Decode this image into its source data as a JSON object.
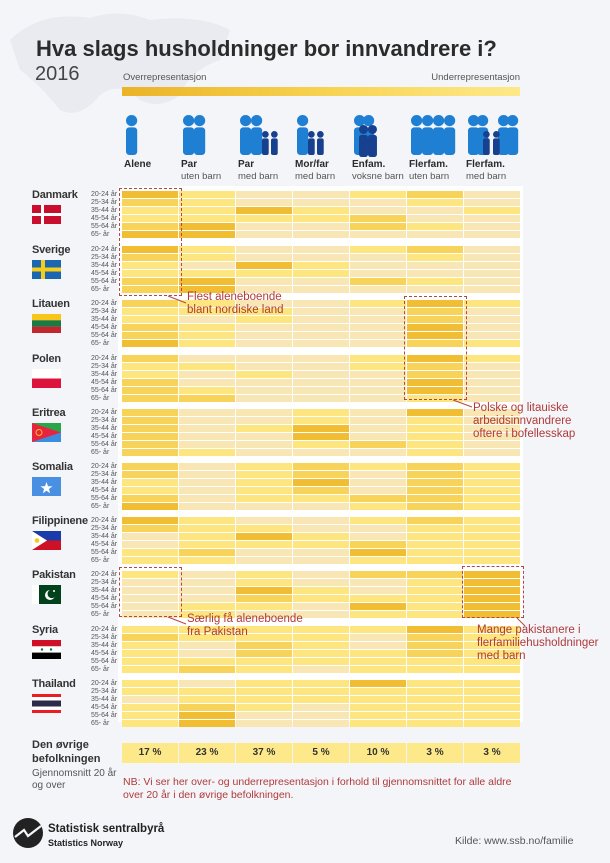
{
  "header": {
    "title": "Hva slags husholdninger bor innvandrere i?",
    "year": "2016"
  },
  "legend": {
    "over": "Overrepresentasjon",
    "under": "Underrepresentasjon"
  },
  "columns": [
    {
      "label": "Alene",
      "sub": ""
    },
    {
      "label": "Par",
      "sub": "uten barn"
    },
    {
      "label": "Par",
      "sub": "med barn"
    },
    {
      "label": "Mor/far",
      "sub": "med barn"
    },
    {
      "label": "Enfam.",
      "sub": "voksne barn"
    },
    {
      "label": "Flerfam.",
      "sub": "uten barn"
    },
    {
      "label": "Flerfam.",
      "sub": "med barn"
    }
  ],
  "colors": {
    "level0": "#f8e6b4",
    "level1": "#fde67f",
    "level2": "#f8d35a",
    "level3": "#f0bd33",
    "annotation": "#b5474b",
    "adult_icon": "#1f7fd3",
    "child_icon": "#17408f"
  },
  "chart_data": {
    "type": "heatmap",
    "scale_note": "level 0 = underrepresentation, 3 = strongest overrepresentation",
    "age_groups": [
      "20-24 år",
      "25-34 år",
      "35-44 år",
      "45-54 år",
      "55-64 år",
      "65- år"
    ],
    "countries": [
      {
        "name": "Danmark",
        "flag": "denmark",
        "levels": [
          [
            3,
            1,
            0,
            0,
            1,
            2,
            0
          ],
          [
            2,
            1,
            0,
            0,
            0,
            1,
            0
          ],
          [
            1,
            1,
            3,
            1,
            0,
            0,
            1
          ],
          [
            1,
            1,
            1,
            1,
            2,
            0,
            0
          ],
          [
            2,
            3,
            0,
            0,
            2,
            1,
            0
          ],
          [
            3,
            3,
            0,
            0,
            0,
            0,
            0
          ]
        ]
      },
      {
        "name": "Sverige",
        "flag": "sweden",
        "levels": [
          [
            3,
            1,
            0,
            0,
            1,
            2,
            0
          ],
          [
            2,
            1,
            0,
            0,
            0,
            1,
            0
          ],
          [
            1,
            0,
            3,
            1,
            0,
            0,
            0
          ],
          [
            1,
            1,
            1,
            1,
            0,
            0,
            0
          ],
          [
            2,
            3,
            0,
            0,
            2,
            1,
            0
          ],
          [
            2,
            3,
            0,
            0,
            0,
            0,
            0
          ]
        ]
      },
      {
        "name": "Litauen",
        "flag": "lithuania",
        "levels": [
          [
            2,
            1,
            0,
            0,
            1,
            3,
            1
          ],
          [
            1,
            1,
            1,
            0,
            0,
            2,
            0
          ],
          [
            1,
            0,
            1,
            0,
            0,
            2,
            0
          ],
          [
            2,
            1,
            0,
            0,
            0,
            3,
            0
          ],
          [
            2,
            1,
            0,
            0,
            0,
            3,
            0
          ],
          [
            3,
            1,
            0,
            0,
            0,
            2,
            1
          ]
        ]
      },
      {
        "name": "Polen",
        "flag": "poland",
        "levels": [
          [
            2,
            0,
            0,
            0,
            1,
            3,
            1
          ],
          [
            1,
            1,
            0,
            0,
            1,
            2,
            0
          ],
          [
            1,
            0,
            1,
            0,
            0,
            2,
            0
          ],
          [
            2,
            0,
            0,
            0,
            0,
            3,
            0
          ],
          [
            2,
            1,
            0,
            0,
            0,
            3,
            0
          ],
          [
            2,
            2,
            0,
            0,
            0,
            1,
            0
          ]
        ]
      },
      {
        "name": "Eritrea",
        "flag": "eritrea",
        "levels": [
          [
            2,
            0,
            0,
            1,
            0,
            3,
            0
          ],
          [
            2,
            0,
            0,
            1,
            0,
            1,
            0
          ],
          [
            2,
            0,
            1,
            3,
            0,
            1,
            0
          ],
          [
            2,
            0,
            0,
            3,
            0,
            1,
            0
          ],
          [
            2,
            0,
            0,
            1,
            2,
            1,
            0
          ],
          [
            2,
            1,
            0,
            0,
            0,
            1,
            0
          ]
        ]
      },
      {
        "name": "Somalia",
        "flag": "somalia",
        "levels": [
          [
            2,
            0,
            1,
            2,
            1,
            2,
            1
          ],
          [
            2,
            0,
            1,
            2,
            0,
            2,
            1
          ],
          [
            1,
            0,
            1,
            3,
            0,
            2,
            1
          ],
          [
            1,
            0,
            1,
            2,
            0,
            2,
            1
          ],
          [
            2,
            0,
            1,
            1,
            2,
            2,
            1
          ],
          [
            3,
            0,
            0,
            0,
            1,
            2,
            1
          ]
        ]
      },
      {
        "name": "Filippinene",
        "flag": "philippines",
        "levels": [
          [
            3,
            1,
            0,
            0,
            1,
            2,
            1
          ],
          [
            2,
            1,
            1,
            0,
            0,
            1,
            1
          ],
          [
            0,
            1,
            3,
            1,
            0,
            1,
            1
          ],
          [
            0,
            1,
            1,
            1,
            2,
            1,
            1
          ],
          [
            1,
            2,
            0,
            0,
            3,
            1,
            1
          ],
          [
            1,
            1,
            0,
            0,
            1,
            1,
            1
          ]
        ]
      },
      {
        "name": "Pakistan",
        "flag": "pakistan",
        "levels": [
          [
            1,
            0,
            1,
            0,
            2,
            2,
            3
          ],
          [
            0,
            0,
            1,
            0,
            0,
            1,
            3
          ],
          [
            0,
            0,
            3,
            1,
            0,
            1,
            3
          ],
          [
            0,
            0,
            2,
            1,
            1,
            1,
            3
          ],
          [
            0,
            1,
            1,
            0,
            3,
            1,
            3
          ],
          [
            0,
            1,
            0,
            0,
            1,
            1,
            3
          ]
        ]
      },
      {
        "name": "Syria",
        "flag": "syria",
        "levels": [
          [
            1,
            1,
            1,
            1,
            1,
            3,
            1
          ],
          [
            2,
            1,
            1,
            1,
            0,
            2,
            1
          ],
          [
            1,
            0,
            2,
            1,
            0,
            2,
            1
          ],
          [
            1,
            0,
            2,
            1,
            1,
            2,
            1
          ],
          [
            1,
            1,
            1,
            1,
            1,
            1,
            1
          ],
          [
            1,
            2,
            1,
            0,
            1,
            1,
            1
          ]
        ]
      },
      {
        "name": "Thailand",
        "flag": "thailand",
        "levels": [
          [
            1,
            0,
            1,
            1,
            3,
            1,
            1
          ],
          [
            1,
            1,
            1,
            1,
            1,
            1,
            1
          ],
          [
            0,
            1,
            1,
            1,
            1,
            1,
            1
          ],
          [
            1,
            2,
            1,
            0,
            1,
            1,
            1
          ],
          [
            1,
            3,
            0,
            0,
            1,
            1,
            1
          ],
          [
            1,
            3,
            0,
            0,
            1,
            1,
            1
          ]
        ]
      }
    ],
    "baseline": {
      "title": "Den øvrige befolkningen",
      "subtitle": "Gjennomsnitt 20 år og over",
      "values": [
        "17 %",
        "23 %",
        "37 %",
        "5 %",
        "10 %",
        "3 %",
        "3 %"
      ]
    }
  },
  "annotations": {
    "nordic": [
      "Flest aleneboende",
      "blant nordiske land"
    ],
    "baltic": [
      "Polske og litauiske",
      "arbeidsinnvandrere",
      "oftere i bofellesskap"
    ],
    "pakistan_alone": [
      "Særlig få aleneboende",
      "fra Pakistan"
    ],
    "pakistan_multi": [
      "Mange pakistanere i",
      "flerfamiliehusholdninger",
      "med barn"
    ]
  },
  "footer": {
    "nb": "NB: Vi ser her over- og underrepresentasjon i forhold til gjennomsnittet for alle aldre over 20 år i den øvrige befolkningen.",
    "logo_line1": "Statistisk sentralbyrå",
    "logo_line2": "Statistics Norway",
    "source": "Kilde: www.ssb.no/familie"
  }
}
